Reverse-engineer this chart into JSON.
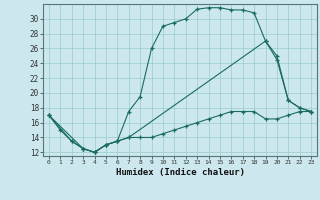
{
  "xlabel": "Humidex (Indice chaleur)",
  "bg_color": "#cce8ee",
  "line_color": "#1a6b60",
  "grid_color": "#99cccc",
  "xlim": [
    -0.5,
    23.5
  ],
  "ylim": [
    11.5,
    32
  ],
  "yticks": [
    12,
    14,
    16,
    18,
    20,
    22,
    24,
    26,
    28,
    30
  ],
  "xticks": [
    0,
    1,
    2,
    3,
    4,
    5,
    6,
    7,
    8,
    9,
    10,
    11,
    12,
    13,
    14,
    15,
    16,
    17,
    18,
    19,
    20,
    21,
    22,
    23
  ],
  "series": [
    {
      "x": [
        0,
        1,
        2,
        3,
        4,
        5,
        6,
        7,
        8,
        9,
        10,
        11,
        12,
        13,
        14,
        15,
        16,
        17,
        18,
        19,
        20,
        21,
        22,
        23
      ],
      "y": [
        17,
        15,
        13.5,
        12.5,
        12,
        13,
        13.5,
        17.5,
        19.5,
        26,
        29,
        29.5,
        30,
        31.3,
        31.5,
        31.5,
        31.2,
        31.2,
        30.8,
        27,
        25,
        19,
        18,
        17.5
      ]
    },
    {
      "x": [
        0,
        2,
        3,
        4,
        5,
        6,
        7,
        19,
        20,
        21,
        22,
        23
      ],
      "y": [
        17,
        13.5,
        12.5,
        12,
        13,
        13.5,
        14,
        27,
        24.5,
        19,
        18,
        17.5
      ]
    },
    {
      "x": [
        0,
        3,
        4,
        5,
        6,
        7,
        8,
        9,
        10,
        11,
        12,
        13,
        14,
        15,
        16,
        17,
        18,
        19,
        20,
        21,
        22,
        23
      ],
      "y": [
        17,
        12.5,
        12,
        13,
        13.5,
        14,
        14,
        14,
        14.5,
        15,
        15.5,
        16,
        16.5,
        17,
        17.5,
        17.5,
        17.5,
        16.5,
        16.5,
        17,
        17.5,
        17.5
      ]
    }
  ]
}
